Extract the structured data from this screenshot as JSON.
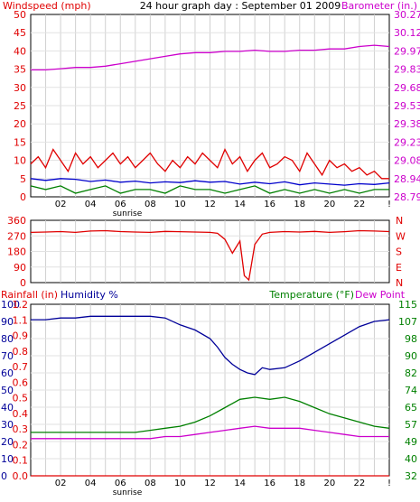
{
  "chart_data": [
    {
      "type": "line",
      "title": "24 hour graph day : September 01 2009",
      "left_axis_label": "Windspeed (mph)",
      "right_axis_label": "Barometer (in.)",
      "colors": {
        "left_axis": "#e00000",
        "right_axis": "#cc00cc",
        "title": "#000000"
      },
      "left_ticks": [
        "0",
        "5",
        "10",
        "15",
        "20",
        "25",
        "30",
        "35",
        "40",
        "45",
        "50"
      ],
      "right_ticks": [
        "28.79",
        "28.94",
        "29.08",
        "29.23",
        "29.38",
        "29.53",
        "29.68",
        "29.83",
        "29.97",
        "30.12",
        "30.27"
      ],
      "x_ticks": [
        "02",
        "04",
        "06",
        "08",
        "10",
        "12",
        "14",
        "16",
        "18",
        "20",
        "22",
        "!"
      ],
      "x_annotation": "sunrise",
      "x_range": [
        0,
        24
      ],
      "left_range": [
        0,
        50
      ],
      "right_range": [
        28.79,
        30.27
      ],
      "grid": true,
      "series": [
        {
          "color": "#cc00cc",
          "axis": "right",
          "x": [
            0,
            1,
            2,
            3,
            4,
            5,
            6,
            7,
            8,
            9,
            10,
            11,
            12,
            13,
            14,
            15,
            16,
            17,
            18,
            19,
            20,
            21,
            22,
            23,
            24
          ],
          "y": [
            29.82,
            29.82,
            29.83,
            29.84,
            29.84,
            29.85,
            29.87,
            29.89,
            29.91,
            29.93,
            29.95,
            29.96,
            29.96,
            29.97,
            29.97,
            29.98,
            29.97,
            29.97,
            29.98,
            29.98,
            29.99,
            29.99,
            30.01,
            30.02,
            30.01
          ]
        },
        {
          "color": "#e00000",
          "axis": "left",
          "style": "gust",
          "x": [
            0,
            0.5,
            1,
            1.5,
            2,
            2.5,
            3,
            3.5,
            4,
            4.5,
            5,
            5.5,
            6,
            6.5,
            7,
            7.5,
            8,
            8.5,
            9,
            9.5,
            10,
            10.5,
            11,
            11.5,
            12,
            12.5,
            13,
            13.5,
            14,
            14.5,
            15,
            15.5,
            16,
            16.5,
            17,
            17.5,
            18,
            18.5,
            19,
            19.5,
            20,
            20.5,
            21,
            21.5,
            22,
            22.5,
            23,
            23.5,
            24
          ],
          "y": [
            9,
            11,
            8,
            13,
            10,
            7,
            12,
            9,
            11,
            8,
            10,
            12,
            9,
            11,
            8,
            10,
            12,
            9,
            7,
            10,
            8,
            11,
            9,
            12,
            10,
            8,
            13,
            9,
            11,
            7,
            10,
            12,
            8,
            9,
            11,
            10,
            7,
            12,
            9,
            6,
            10,
            8,
            9,
            7,
            8,
            6,
            7,
            5,
            5
          ]
        },
        {
          "color": "#0000cc",
          "axis": "left",
          "style": "average",
          "x": [
            0,
            1,
            2,
            3,
            4,
            5,
            6,
            7,
            8,
            9,
            10,
            11,
            12,
            13,
            14,
            15,
            16,
            17,
            18,
            19,
            20,
            21,
            22,
            23,
            24
          ],
          "y": [
            5,
            4.5,
            5,
            4.8,
            4.2,
            4.6,
            4,
            4.3,
            3.8,
            4.1,
            3.9,
            4.4,
            4,
            4.2,
            3.5,
            4,
            3.6,
            4.1,
            3.3,
            3.8,
            3.5,
            3.2,
            3.6,
            3.4,
            3.8
          ]
        },
        {
          "color": "#008000",
          "axis": "left",
          "style": "minimum",
          "x": [
            0,
            1,
            2,
            3,
            4,
            5,
            6,
            7,
            8,
            9,
            10,
            11,
            12,
            13,
            14,
            15,
            16,
            17,
            18,
            19,
            20,
            21,
            22,
            23,
            24
          ],
          "y": [
            3,
            2,
            3,
            1,
            2,
            3,
            1,
            2,
            2,
            1,
            3,
            2,
            2,
            1,
            2,
            3,
            1,
            2,
            1,
            2,
            1,
            2,
            1,
            2,
            2
          ]
        }
      ]
    },
    {
      "type": "line",
      "left_ticks": [
        "360",
        "270",
        "180",
        "90",
        "0"
      ],
      "right_ticks": [
        "N",
        "W",
        "S",
        "E",
        "N"
      ],
      "left_range": [
        0,
        360
      ],
      "x_range": [
        0,
        24
      ],
      "colors": {
        "left_axis": "#e00000",
        "right_axis": "#e00000"
      },
      "grid": true,
      "series": [
        {
          "color": "#e00000",
          "x": [
            0,
            1,
            2,
            3,
            4,
            5,
            6,
            7,
            8,
            9,
            10,
            11,
            12,
            12.5,
            13,
            13.5,
            14,
            14.3,
            14.6,
            15,
            15.5,
            16,
            17,
            18,
            19,
            20,
            21,
            22,
            23,
            24
          ],
          "y": [
            290,
            292,
            295,
            290,
            298,
            300,
            295,
            292,
            290,
            296,
            294,
            292,
            290,
            285,
            250,
            170,
            240,
            40,
            15,
            220,
            280,
            290,
            295,
            292,
            296,
            290,
            294,
            300,
            298,
            295
          ]
        }
      ]
    },
    {
      "type": "line",
      "left_axis_labels": [
        "Rainfall (in)",
        "Humidity %"
      ],
      "right_axis_labels": [
        "Temperature (°F)",
        "Dew Point"
      ],
      "colors": {
        "rainfall": "#e00000",
        "humidity": "#000099",
        "temperature": "#008000",
        "dew_point": "#cc00cc"
      },
      "humidity_ticks": [
        "0",
        "10",
        "20",
        "30",
        "40",
        "50",
        "60",
        "70",
        "80",
        "90",
        "100"
      ],
      "rainfall_ticks": [
        "0.0",
        "0.1",
        "0.2",
        "0.3",
        "0.4",
        "0.5",
        "0.6",
        "0.7",
        "0.8",
        "0.9",
        "1.1",
        "1.2"
      ],
      "temperature_ticks": [
        "32",
        "40",
        "49",
        "57",
        "65",
        "74",
        "82",
        "90",
        "98",
        "107",
        "115"
      ],
      "x_ticks": [
        "02",
        "04",
        "06",
        "08",
        "10",
        "12",
        "14",
        "16",
        "18",
        "20",
        "22",
        "!"
      ],
      "x_annotation": "sunrise",
      "x_range": [
        0,
        24
      ],
      "humidity_range": [
        0,
        100
      ],
      "temperature_range": [
        32,
        115
      ],
      "grid": true,
      "series": [
        {
          "color": "#000099",
          "axis": "humidity",
          "x": [
            0,
            1,
            2,
            3,
            4,
            5,
            6,
            7,
            8,
            9,
            10,
            11,
            12,
            12.5,
            13,
            13.5,
            14,
            14.5,
            15,
            15.5,
            16,
            17,
            18,
            19,
            20,
            21,
            22,
            23,
            24
          ],
          "y": [
            91,
            91,
            92,
            92,
            93,
            93,
            93,
            93,
            93,
            92,
            88,
            85,
            80,
            75,
            69,
            65,
            62,
            60,
            59,
            63,
            62,
            63,
            67,
            72,
            77,
            82,
            87,
            90,
            91
          ]
        },
        {
          "color": "#008000",
          "axis": "temperature",
          "x": [
            0,
            1,
            2,
            3,
            4,
            5,
            6,
            7,
            8,
            9,
            10,
            11,
            12,
            13,
            14,
            15,
            16,
            17,
            18,
            19,
            20,
            21,
            22,
            23,
            24
          ],
          "y": [
            53,
            53,
            53,
            53,
            53,
            53,
            53,
            53,
            54,
            55,
            56,
            58,
            61,
            65,
            69,
            70,
            69,
            70,
            68,
            65,
            62,
            60,
            58,
            56,
            55
          ]
        },
        {
          "color": "#cc00cc",
          "axis": "temperature",
          "x": [
            0,
            1,
            2,
            3,
            4,
            5,
            6,
            7,
            8,
            9,
            10,
            11,
            12,
            13,
            14,
            15,
            16,
            17,
            18,
            19,
            20,
            21,
            22,
            23,
            24
          ],
          "y": [
            50,
            50,
            50,
            50,
            50,
            50,
            50,
            50,
            50,
            51,
            51,
            52,
            53,
            54,
            55,
            56,
            55,
            55,
            55,
            54,
            53,
            52,
            51,
            51,
            51
          ]
        },
        {
          "color": "#e00000",
          "axis": "rainfall",
          "x": [
            0,
            24
          ],
          "y": [
            0,
            0
          ]
        }
      ]
    }
  ]
}
